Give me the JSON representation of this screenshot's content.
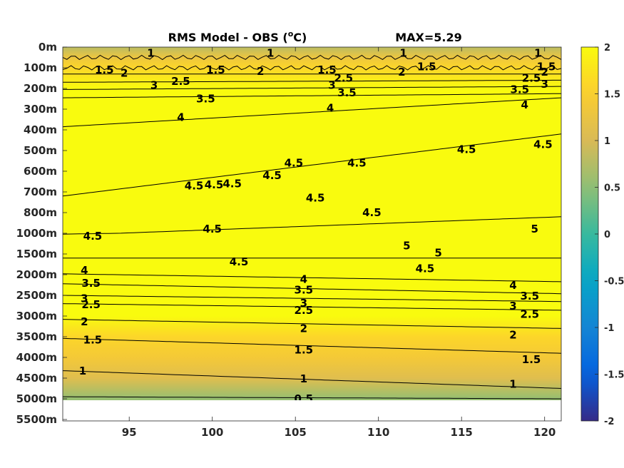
{
  "chart_data": {
    "type": "heatmap",
    "title": "RMS Model - OBS",
    "title_unit_base": "(",
    "title_unit_sup": "o",
    "title_unit_rest": "C)",
    "max_label": "MAX=5.29",
    "x_ticks": [
      95,
      100,
      105,
      110,
      115,
      120
    ],
    "xlim": [
      91,
      121
    ],
    "y_ticks": [
      "0m",
      "100m",
      "200m",
      "300m",
      "400m",
      "500m",
      "600m",
      "700m",
      "800m",
      "1000m",
      "1500m",
      "2000m",
      "2500m",
      "3000m",
      "3500m",
      "4000m",
      "4500m",
      "5000m",
      "5500m"
    ],
    "y_depth_m": [
      0,
      100,
      200,
      300,
      400,
      500,
      600,
      700,
      800,
      1000,
      1500,
      2000,
      2500,
      3000,
      3500,
      4000,
      4500,
      5000,
      5500
    ],
    "colorbar": {
      "ticks": [
        2,
        1.5,
        1,
        0.5,
        0,
        -0.5,
        -1,
        -1.5,
        -2
      ],
      "clim": [
        -2,
        2
      ],
      "colormap": "parula"
    },
    "field_profile": {
      "depth_m": [
        0,
        50,
        100,
        200,
        300,
        500,
        1000,
        2000,
        3000,
        3500,
        4000,
        4500,
        5000
      ],
      "rms_value": [
        0.8,
        1.3,
        1.6,
        2.8,
        4.0,
        4.6,
        4.7,
        4.0,
        2.5,
        1.6,
        1.4,
        1.1,
        0.55
      ]
    },
    "contours": [
      {
        "level": "1",
        "depth_m": [
          50,
          50
        ]
      },
      {
        "level": "1.5",
        "depth_m": [
          100,
          100
        ]
      },
      {
        "level": "2",
        "depth_m": [
          130,
          130
        ]
      },
      {
        "level": "2.5",
        "depth_m": [
          170,
          160
        ]
      },
      {
        "level": "3",
        "depth_m": [
          205,
          190
        ]
      },
      {
        "level": "3.5",
        "depth_m": [
          245,
          225
        ]
      },
      {
        "level": "4",
        "depth_m": [
          385,
          245
        ]
      },
      {
        "level": "4.5",
        "depth_m": [
          720,
          420
        ]
      },
      {
        "level": "4.5",
        "depth_m": [
          1020,
          840
        ]
      },
      {
        "level": "4.5",
        "depth_m": [
          1600,
          1600
        ]
      },
      {
        "level": "4",
        "depth_m": [
          1980,
          2170
        ]
      },
      {
        "level": "3.5",
        "depth_m": [
          2220,
          2460
        ]
      },
      {
        "level": "3",
        "depth_m": [
          2500,
          2650
        ]
      },
      {
        "level": "2.5",
        "depth_m": [
          2700,
          2860
        ]
      },
      {
        "level": "2",
        "depth_m": [
          3080,
          3300
        ]
      },
      {
        "level": "1.5",
        "depth_m": [
          3540,
          3900
        ]
      },
      {
        "level": "1",
        "depth_m": [
          4320,
          4750
        ]
      },
      {
        "level": "0.5",
        "depth_m": [
          4950,
          5000
        ]
      }
    ],
    "contour_labels": [
      {
        "text": "1",
        "x": 96.3,
        "depth_m": 30
      },
      {
        "text": "1",
        "x": 103.5,
        "depth_m": 30
      },
      {
        "text": "1",
        "x": 111.5,
        "depth_m": 30
      },
      {
        "text": "1",
        "x": 119.6,
        "depth_m": 30
      },
      {
        "text": "1.5",
        "x": 93.5,
        "depth_m": 110
      },
      {
        "text": "2",
        "x": 94.7,
        "depth_m": 125
      },
      {
        "text": "1.5",
        "x": 100.2,
        "depth_m": 110
      },
      {
        "text": "2",
        "x": 102.9,
        "depth_m": 118
      },
      {
        "text": "1.5",
        "x": 106.9,
        "depth_m": 110
      },
      {
        "text": "2.5",
        "x": 107.9,
        "depth_m": 150
      },
      {
        "text": "2",
        "x": 111.4,
        "depth_m": 120
      },
      {
        "text": "1.5",
        "x": 112.9,
        "depth_m": 95
      },
      {
        "text": "1.5",
        "x": 120.1,
        "depth_m": 95
      },
      {
        "text": "2",
        "x": 120.0,
        "depth_m": 120
      },
      {
        "text": "2.5",
        "x": 119.2,
        "depth_m": 150
      },
      {
        "text": "3",
        "x": 120.0,
        "depth_m": 180
      },
      {
        "text": "2.5",
        "x": 98.1,
        "depth_m": 165
      },
      {
        "text": "3",
        "x": 96.5,
        "depth_m": 185
      },
      {
        "text": "3",
        "x": 107.2,
        "depth_m": 185
      },
      {
        "text": "3.5",
        "x": 108.1,
        "depth_m": 220
      },
      {
        "text": "3.5",
        "x": 118.5,
        "depth_m": 205
      },
      {
        "text": "3.5",
        "x": 99.6,
        "depth_m": 250
      },
      {
        "text": "4",
        "x": 107.1,
        "depth_m": 295
      },
      {
        "text": "4",
        "x": 118.8,
        "depth_m": 280
      },
      {
        "text": "4",
        "x": 98.1,
        "depth_m": 340
      },
      {
        "text": "4.5",
        "x": 115.3,
        "depth_m": 495
      },
      {
        "text": "4.5",
        "x": 119.9,
        "depth_m": 470
      },
      {
        "text": "4.5",
        "x": 104.9,
        "depth_m": 560
      },
      {
        "text": "4.5",
        "x": 108.7,
        "depth_m": 560
      },
      {
        "text": "4.5",
        "x": 103.6,
        "depth_m": 620
      },
      {
        "text": "4.5",
        "x": 98.9,
        "depth_m": 670
      },
      {
        "text": "4.5",
        "x": 100.1,
        "depth_m": 665
      },
      {
        "text": "4.5",
        "x": 101.2,
        "depth_m": 660
      },
      {
        "text": "4.5",
        "x": 106.2,
        "depth_m": 730
      },
      {
        "text": "4.5",
        "x": 109.6,
        "depth_m": 800
      },
      {
        "text": "4.5",
        "x": 100.0,
        "depth_m": 960
      },
      {
        "text": "4.5",
        "x": 92.8,
        "depth_m": 1070
      },
      {
        "text": "5",
        "x": 119.4,
        "depth_m": 960
      },
      {
        "text": "5",
        "x": 111.7,
        "depth_m": 1300
      },
      {
        "text": "5",
        "x": 113.6,
        "depth_m": 1470
      },
      {
        "text": "4.5",
        "x": 101.6,
        "depth_m": 1690
      },
      {
        "text": "4.5",
        "x": 112.8,
        "depth_m": 1850
      },
      {
        "text": "4",
        "x": 92.3,
        "depth_m": 1900
      },
      {
        "text": "4",
        "x": 105.5,
        "depth_m": 2110
      },
      {
        "text": "4",
        "x": 118.1,
        "depth_m": 2260
      },
      {
        "text": "3.5",
        "x": 92.7,
        "depth_m": 2210
      },
      {
        "text": "3.5",
        "x": 105.5,
        "depth_m": 2370
      },
      {
        "text": "3.5",
        "x": 119.1,
        "depth_m": 2520
      },
      {
        "text": "3",
        "x": 92.3,
        "depth_m": 2580
      },
      {
        "text": "3",
        "x": 105.5,
        "depth_m": 2690
      },
      {
        "text": "3",
        "x": 118.1,
        "depth_m": 2760
      },
      {
        "text": "2.5",
        "x": 92.7,
        "depth_m": 2720
      },
      {
        "text": "2.5",
        "x": 105.5,
        "depth_m": 2860
      },
      {
        "text": "2.5",
        "x": 119.1,
        "depth_m": 2960
      },
      {
        "text": "2",
        "x": 92.3,
        "depth_m": 3140
      },
      {
        "text": "2",
        "x": 105.5,
        "depth_m": 3300
      },
      {
        "text": "2",
        "x": 118.1,
        "depth_m": 3460
      },
      {
        "text": "1.5",
        "x": 92.8,
        "depth_m": 3580
      },
      {
        "text": "1.5",
        "x": 105.5,
        "depth_m": 3820
      },
      {
        "text": "1.5",
        "x": 119.2,
        "depth_m": 4050
      },
      {
        "text": "1",
        "x": 92.2,
        "depth_m": 4330
      },
      {
        "text": "1",
        "x": 105.5,
        "depth_m": 4520
      },
      {
        "text": "1",
        "x": 118.1,
        "depth_m": 4650
      },
      {
        "text": "0.5",
        "x": 105.5,
        "depth_m": 5000
      }
    ]
  }
}
